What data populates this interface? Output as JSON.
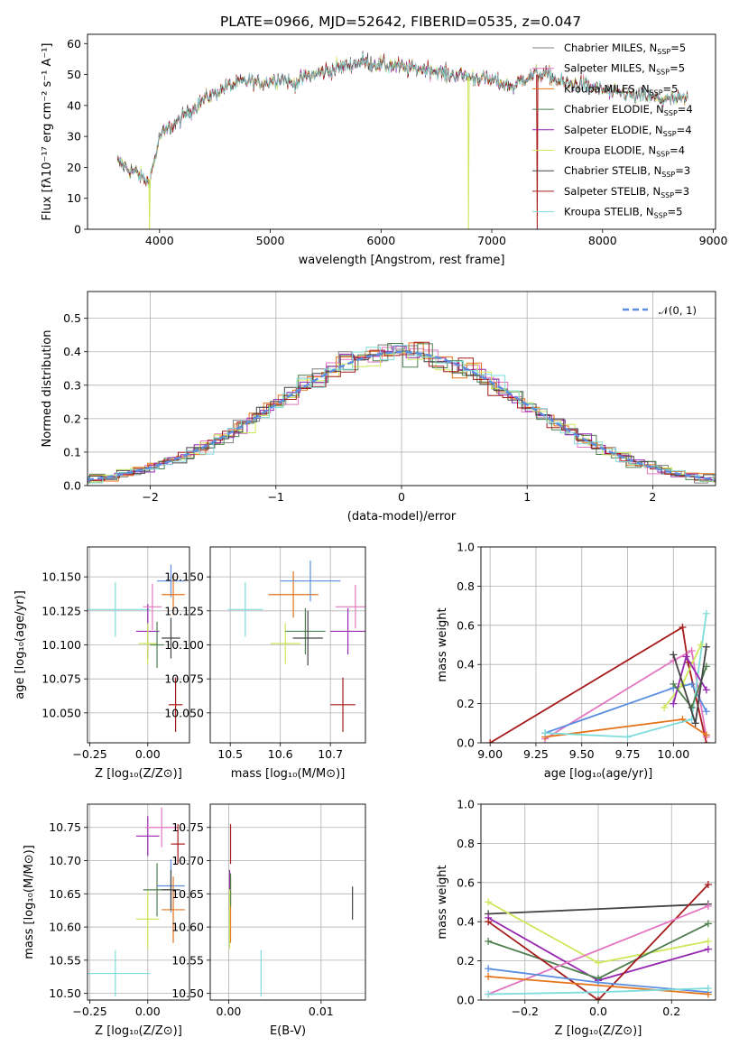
{
  "figure_title": "PLATE=0966, MJD=52642, FIBERID=0535, z=0.047",
  "colors": {
    "chabrier_miles": "#7f7f7f",
    "salpeter_miles": "#e377c2",
    "kroupa_miles": "#e6731a",
    "chabrier_elodie": "#4f7f4f",
    "salpeter_elodie": "#9527b0",
    "kroupa_elodie": "#cde85a",
    "chabrier_stelib": "#444444",
    "salpeter_stelib": "#a61b1b",
    "kroupa_stelib": "#7fdcdc",
    "blue": "#5b8ee0"
  },
  "chart_data": [
    {
      "id": "spectrum",
      "type": "line",
      "title": "PLATE=0966, MJD=52642, FIBERID=0535, z=0.047",
      "xlabel": "wavelength [Angstrom, rest frame]",
      "ylabel": "Flux [fλ10⁻¹⁷ erg cm⁻² s⁻¹ A⁻¹]",
      "xlim": [
        3350,
        9020
      ],
      "ylim": [
        0,
        63
      ],
      "xticks": [
        "4000",
        "5000",
        "6000",
        "7000",
        "8000",
        "9000"
      ],
      "yticks": [
        "0",
        "10",
        "20",
        "30",
        "40",
        "50",
        "60"
      ],
      "grid": false,
      "legend_position": "right",
      "legend": [
        {
          "label": "Chabrier MILES, N",
          "sub": "SSP",
          "tail": "=5",
          "color": "#7f7f7f"
        },
        {
          "label": "Salpeter MILES, N",
          "sub": "SSP",
          "tail": "=5",
          "color": "#e377c2"
        },
        {
          "label": "Kroupa MILES, N",
          "sub": "SSP",
          "tail": "=5",
          "color": "#e6731a"
        },
        {
          "label": "Chabrier ELODIE, N",
          "sub": "SSP",
          "tail": "=4",
          "color": "#4f7f4f"
        },
        {
          "label": "Salpeter ELODIE, N",
          "sub": "SSP",
          "tail": "=4",
          "color": "#9527b0"
        },
        {
          "label": "Kroupa ELODIE, N",
          "sub": "SSP",
          "tail": "=4",
          "color": "#cde85a"
        },
        {
          "label": "Chabrier STELIB, N",
          "sub": "SSP",
          "tail": "=3",
          "color": "#444444"
        },
        {
          "label": "Salpeter STELIB, N",
          "sub": "SSP",
          "tail": "=3",
          "color": "#a61b1b"
        },
        {
          "label": "Kroupa STELIB, N",
          "sub": "SSP",
          "tail": "=5",
          "color": "#7fdcdc"
        }
      ],
      "continuum": [
        [
          3620,
          22
        ],
        [
          3700,
          20
        ],
        [
          3800,
          18
        ],
        [
          3900,
          15
        ],
        [
          3960,
          23
        ],
        [
          4000,
          30
        ],
        [
          4100,
          33
        ],
        [
          4200,
          36
        ],
        [
          4300,
          39
        ],
        [
          4400,
          42
        ],
        [
          4500,
          44
        ],
        [
          4600,
          46
        ],
        [
          4700,
          47
        ],
        [
          4800,
          48
        ],
        [
          4900,
          47
        ],
        [
          5000,
          48
        ],
        [
          5100,
          49
        ],
        [
          5200,
          47
        ],
        [
          5300,
          49
        ],
        [
          5400,
          50
        ],
        [
          5500,
          51
        ],
        [
          5600,
          52
        ],
        [
          5700,
          53
        ],
        [
          5800,
          54
        ],
        [
          5900,
          54
        ],
        [
          6000,
          53
        ],
        [
          6100,
          53
        ],
        [
          6200,
          52
        ],
        [
          6300,
          52
        ],
        [
          6400,
          52
        ],
        [
          6500,
          51
        ],
        [
          6600,
          50
        ],
        [
          6700,
          50
        ],
        [
          6800,
          49
        ],
        [
          6900,
          49
        ],
        [
          7000,
          48
        ],
        [
          7100,
          47
        ],
        [
          7200,
          46
        ],
        [
          7300,
          49
        ],
        [
          7400,
          50
        ],
        [
          7500,
          50
        ],
        [
          7600,
          48
        ],
        [
          7700,
          47
        ],
        [
          7800,
          47
        ],
        [
          7900,
          46
        ],
        [
          8000,
          45
        ],
        [
          8100,
          44
        ],
        [
          8200,
          44
        ],
        [
          8300,
          43
        ],
        [
          8400,
          43
        ],
        [
          8500,
          42
        ],
        [
          8600,
          42
        ],
        [
          8700,
          42
        ],
        [
          8770,
          42
        ]
      ],
      "dips": [
        {
          "x": 3910,
          "y": 0,
          "color": "#cde85a"
        },
        {
          "x": 6790,
          "y": 0,
          "color": "#cde85a"
        },
        {
          "x": 7410,
          "y": 0,
          "color": "#a61b1b"
        }
      ]
    },
    {
      "id": "residuals",
      "type": "step",
      "xlabel": "(data-model)/error",
      "ylabel": "Normed distribution",
      "xlim": [
        -2.5,
        2.5
      ],
      "ylim": [
        0,
        0.58
      ],
      "xticks": [
        "−2",
        "−1",
        "0",
        "1",
        "2"
      ],
      "yticks": [
        "0.0",
        "0.1",
        "0.2",
        "0.3",
        "0.4",
        "0.5"
      ],
      "grid": true,
      "legend_position": "upper right",
      "legend": [
        {
          "label": "𝒩(0, 1)",
          "color": "#5b8ee0",
          "style": "dashed"
        }
      ]
    },
    {
      "id": "age-vs-z",
      "type": "errorbar",
      "xlabel": "Z [log₁₀(Z/Z⊙)]",
      "ylabel": "age  [log₁₀(age/yr)]",
      "xlim": [
        -0.26,
        0.18
      ],
      "ylim": [
        10.028,
        10.172
      ],
      "xticks": [
        "−0.25",
        "0.00"
      ],
      "yticks": [
        "10.050",
        "10.075",
        "10.100",
        "10.125",
        "10.150"
      ],
      "grid": true,
      "points": [
        {
          "x": -0.14,
          "y": 10.126,
          "xerr": 0.15,
          "yerr": 0.02,
          "color": "#7fdcdc"
        },
        {
          "x": 0.0,
          "y": 10.11,
          "xerr": 0.05,
          "yerr": 0.02,
          "color": "#9527b0"
        },
        {
          "x": 0.02,
          "y": 10.128,
          "xerr": 0.04,
          "yerr": 0.017,
          "color": "#e377c2"
        },
        {
          "x": 0.0,
          "y": 10.101,
          "xerr": 0.04,
          "yerr": 0.015,
          "color": "#cde85a"
        },
        {
          "x": 0.04,
          "y": 10.1,
          "xerr": 0.03,
          "yerr": 0.017,
          "color": "#4f7f4f"
        },
        {
          "x": 0.1,
          "y": 10.147,
          "xerr": 0.06,
          "yerr": 0.012,
          "color": "#5b8ee0"
        },
        {
          "x": 0.11,
          "y": 10.137,
          "xerr": 0.05,
          "yerr": 0.015,
          "color": "#e6731a"
        },
        {
          "x": 0.1,
          "y": 10.105,
          "xerr": 0.04,
          "yerr": 0.015,
          "color": "#444444"
        },
        {
          "x": 0.12,
          "y": 10.056,
          "xerr": 0.03,
          "yerr": 0.02,
          "color": "#a61b1b"
        }
      ]
    },
    {
      "id": "age-vs-mass",
      "type": "errorbar",
      "xlabel": "mass [log₁₀(M/M⊙)]",
      "ylabel": "",
      "xlim": [
        10.46,
        10.77
      ],
      "ylim": [
        10.028,
        10.172
      ],
      "xticks": [
        "10.5",
        "10.6",
        "10.7"
      ],
      "yticks": [
        "10.050",
        "10.075",
        "10.100",
        "10.125",
        "10.150"
      ],
      "grid": true,
      "points": [
        {
          "x": 10.53,
          "y": 10.126,
          "xerr": 0.035,
          "yerr": 0.02,
          "color": "#7fdcdc"
        },
        {
          "x": 10.61,
          "y": 10.101,
          "xerr": 0.03,
          "yerr": 0.015,
          "color": "#cde85a"
        },
        {
          "x": 10.626,
          "y": 10.137,
          "xerr": 0.05,
          "yerr": 0.017,
          "color": "#e6731a"
        },
        {
          "x": 10.65,
          "y": 10.11,
          "xerr": 0.04,
          "yerr": 0.017,
          "color": "#4f7f4f"
        },
        {
          "x": 10.66,
          "y": 10.147,
          "xerr": 0.06,
          "yerr": 0.015,
          "color": "#5b8ee0"
        },
        {
          "x": 10.655,
          "y": 10.105,
          "xerr": 0.03,
          "yerr": 0.02,
          "color": "#444444"
        },
        {
          "x": 10.735,
          "y": 10.11,
          "xerr": 0.035,
          "yerr": 0.017,
          "color": "#9527b0"
        },
        {
          "x": 10.75,
          "y": 10.128,
          "xerr": 0.04,
          "yerr": 0.016,
          "color": "#e377c2"
        },
        {
          "x": 10.725,
          "y": 10.056,
          "xerr": 0.025,
          "yerr": 0.02,
          "color": "#a61b1b"
        }
      ]
    },
    {
      "id": "weight-vs-age",
      "type": "line",
      "xlabel": "age  [log₁₀(age/yr)]",
      "ylabel": "mass weight",
      "xlim": [
        8.95,
        10.23
      ],
      "ylim": [
        0,
        1
      ],
      "xticks": [
        "9.00",
        "9.25",
        "9.50",
        "9.75",
        "10.00"
      ],
      "yticks": [
        "0.0",
        "0.2",
        "0.4",
        "0.6",
        "0.8",
        "1.0"
      ],
      "grid": true,
      "series": [
        {
          "color": "#a61b1b",
          "points": [
            [
              9.0,
              0.0
            ],
            [
              10.05,
              0.59
            ],
            [
              10.08,
              0.41
            ],
            [
              10.18,
              0.0
            ]
          ]
        },
        {
          "color": "#e377c2",
          "points": [
            [
              9.3,
              0.02
            ],
            [
              10.0,
              0.42
            ],
            [
              10.1,
              0.47
            ],
            [
              10.18,
              0.03
            ]
          ]
        },
        {
          "color": "#5b8ee0",
          "points": [
            [
              9.3,
              0.05
            ],
            [
              10.0,
              0.28
            ],
            [
              10.1,
              0.3
            ],
            [
              10.18,
              0.16
            ]
          ]
        },
        {
          "color": "#e6731a",
          "points": [
            [
              9.3,
              0.03
            ],
            [
              10.05,
              0.12
            ],
            [
              10.18,
              0.04
            ]
          ]
        },
        {
          "color": "#7fdcdc",
          "points": [
            [
              9.3,
              0.05
            ],
            [
              9.75,
              0.03
            ],
            [
              10.1,
              0.12
            ],
            [
              10.18,
              0.66
            ]
          ]
        },
        {
          "color": "#cde85a",
          "points": [
            [
              9.95,
              0.18
            ],
            [
              10.05,
              0.3
            ],
            [
              10.15,
              0.5
            ]
          ]
        },
        {
          "color": "#9527b0",
          "points": [
            [
              10.0,
              0.2
            ],
            [
              10.07,
              0.44
            ],
            [
              10.18,
              0.27
            ]
          ]
        },
        {
          "color": "#4f7f4f",
          "points": [
            [
              10.0,
              0.3
            ],
            [
              10.1,
              0.18
            ],
            [
              10.18,
              0.39
            ]
          ]
        },
        {
          "color": "#444444",
          "points": [
            [
              10.0,
              0.45
            ],
            [
              10.12,
              0.1
            ],
            [
              10.18,
              0.49
            ]
          ]
        }
      ]
    },
    {
      "id": "mass-vs-z",
      "type": "errorbar",
      "xlabel": "Z [log₁₀(Z/Z⊙)]",
      "ylabel": "mass [log₁₀(M/M⊙)]",
      "xlim": [
        -0.26,
        0.18
      ],
      "ylim": [
        10.49,
        10.785
      ],
      "xticks": [
        "−0.25",
        "0.00"
      ],
      "yticks": [
        "10.50",
        "10.55",
        "10.60",
        "10.65",
        "10.70",
        "10.75"
      ],
      "grid": true,
      "points": [
        {
          "x": -0.14,
          "y": 10.53,
          "xerr": 0.15,
          "yerr": 0.035,
          "color": "#7fdcdc"
        },
        {
          "x": 0.0,
          "y": 10.612,
          "xerr": 0.05,
          "yerr": 0.045,
          "color": "#cde85a"
        },
        {
          "x": 0.0,
          "y": 10.737,
          "xerr": 0.05,
          "yerr": 0.03,
          "color": "#9527b0"
        },
        {
          "x": 0.06,
          "y": 10.75,
          "xerr": 0.07,
          "yerr": 0.03,
          "color": "#e377c2"
        },
        {
          "x": 0.04,
          "y": 10.656,
          "xerr": 0.06,
          "yerr": 0.04,
          "color": "#4f7f4f"
        },
        {
          "x": 0.1,
          "y": 10.662,
          "xerr": 0.06,
          "yerr": 0.04,
          "color": "#5b8ee0"
        },
        {
          "x": 0.11,
          "y": 10.626,
          "xerr": 0.05,
          "yerr": 0.05,
          "color": "#e6731a"
        },
        {
          "x": 0.1,
          "y": 10.656,
          "xerr": 0.04,
          "yerr": 0.03,
          "color": "#444444"
        },
        {
          "x": 0.13,
          "y": 10.725,
          "xerr": 0.03,
          "yerr": 0.03,
          "color": "#a61b1b"
        }
      ]
    },
    {
      "id": "mass-vs-ebv",
      "type": "errorbar",
      "xlabel": "E(B-V)",
      "ylabel": "",
      "xlim": [
        -0.002,
        0.0148
      ],
      "ylim": [
        10.49,
        10.785
      ],
      "xticks": [
        "0.00",
        "0.01"
      ],
      "yticks": [
        "10.50",
        "10.55",
        "10.60",
        "10.65",
        "10.70",
        "10.75"
      ],
      "grid": true,
      "points": [
        {
          "x": 0.0002,
          "y": 10.725,
          "xerr": 0,
          "yerr": 0.03,
          "color": "#a61b1b"
        },
        {
          "x": 0.0001,
          "y": 10.656,
          "xerr": 0,
          "yerr": 0.03,
          "color": "#9527b0"
        },
        {
          "x": 0.0002,
          "y": 10.626,
          "xerr": 0,
          "yerr": 0.05,
          "color": "#e6731a"
        },
        {
          "x": 0.0002,
          "y": 10.656,
          "xerr": 0,
          "yerr": 0.025,
          "color": "#4f7f4f"
        },
        {
          "x": 0.0001,
          "y": 10.612,
          "xerr": 0,
          "yerr": 0.045,
          "color": "#cde85a"
        },
        {
          "x": 0.0035,
          "y": 10.53,
          "xerr": 0,
          "yerr": 0.035,
          "color": "#7fdcdc"
        },
        {
          "x": 0.0134,
          "y": 10.636,
          "xerr": 0,
          "yerr": 0.025,
          "color": "#444444"
        }
      ]
    },
    {
      "id": "weight-vs-z",
      "type": "line",
      "xlabel": "Z [log₁₀(Z/Z⊙)]",
      "ylabel": "mass weight",
      "xlim": [
        -0.32,
        0.32
      ],
      "ylim": [
        0,
        1
      ],
      "xticks": [
        "−0.2",
        "0.0",
        "0.2"
      ],
      "yticks": [
        "0.0",
        "0.2",
        "0.4",
        "0.6",
        "0.8",
        "1.0"
      ],
      "grid": true,
      "series": [
        {
          "color": "#444444",
          "points": [
            [
              -0.3,
              0.44
            ],
            [
              0.3,
              0.49
            ]
          ]
        },
        {
          "color": "#cde85a",
          "points": [
            [
              -0.3,
              0.5
            ],
            [
              0.0,
              0.19
            ],
            [
              0.3,
              0.3
            ]
          ]
        },
        {
          "color": "#9527b0",
          "points": [
            [
              -0.3,
              0.42
            ],
            [
              0.0,
              0.1
            ],
            [
              0.3,
              0.26
            ]
          ]
        },
        {
          "color": "#4f7f4f",
          "points": [
            [
              -0.3,
              0.3
            ],
            [
              0.0,
              0.11
            ],
            [
              0.3,
              0.39
            ]
          ]
        },
        {
          "color": "#a61b1b",
          "points": [
            [
              -0.3,
              0.4
            ],
            [
              0.0,
              0.0
            ],
            [
              0.3,
              0.59
            ]
          ]
        },
        {
          "color": "#e377c2",
          "points": [
            [
              -0.3,
              0.03
            ],
            [
              0.3,
              0.48
            ]
          ]
        },
        {
          "color": "#5b8ee0",
          "points": [
            [
              -0.3,
              0.16
            ],
            [
              0.0,
              0.09
            ],
            [
              0.3,
              0.04
            ]
          ]
        },
        {
          "color": "#e6731a",
          "points": [
            [
              -0.3,
              0.12
            ],
            [
              0.3,
              0.03
            ]
          ]
        },
        {
          "color": "#7fdcdc",
          "points": [
            [
              -0.3,
              0.03
            ],
            [
              0.0,
              0.04
            ],
            [
              0.3,
              0.06
            ]
          ]
        }
      ]
    }
  ]
}
